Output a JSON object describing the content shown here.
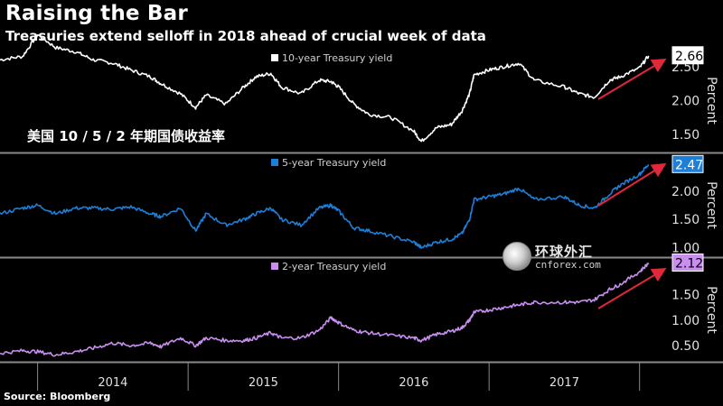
{
  "header": {
    "title": "Raising the Bar",
    "subtitle": "Treasuries extend selloff in 2018 ahead of crucial week of data"
  },
  "annotation": "美国 10 / 5 / 2 年期国债收益率",
  "source": "Source: Bloomberg",
  "watermark": {
    "cn": "环球外汇",
    "en": "cnforex.com"
  },
  "colors": {
    "background": "#000000",
    "ten_year": "#ffffff",
    "five_year": "#1e7fd8",
    "two_year": "#c98ef0",
    "arrow": "#e0283a",
    "separator": "#8a8a8a"
  },
  "chart_data": [
    {
      "type": "line",
      "panel": "top",
      "legend": "10-year Treasury yield",
      "ylabel": "Percent",
      "ylim": [
        1.25,
        2.75
      ],
      "yticks": [
        "1.50",
        "2.00",
        "2.50"
      ],
      "last_value": "2.66",
      "grid": false,
      "series": [
        {
          "name": "10-year Treasury yield",
          "x": [
            2013.75,
            2013.9,
            2014.0,
            2014.12,
            2014.25,
            2014.37,
            2014.5,
            2014.62,
            2014.75,
            2014.82,
            2014.95,
            2015.05,
            2015.12,
            2015.25,
            2015.37,
            2015.45,
            2015.55,
            2015.62,
            2015.75,
            2015.87,
            2015.95,
            2016.0,
            2016.1,
            2016.2,
            2016.35,
            2016.5,
            2016.55,
            2016.65,
            2016.75,
            2016.82,
            2016.87,
            2016.9,
            2017.0,
            2017.1,
            2017.2,
            2017.3,
            2017.5,
            2017.6,
            2017.7,
            2017.8,
            2017.87,
            2018.0,
            2018.06
          ],
          "y": [
            2.6,
            2.65,
            2.97,
            2.78,
            2.72,
            2.6,
            2.55,
            2.45,
            2.35,
            2.25,
            2.1,
            1.9,
            2.08,
            1.95,
            2.2,
            2.35,
            2.4,
            2.2,
            2.1,
            2.3,
            2.28,
            2.2,
            1.95,
            1.8,
            1.75,
            1.55,
            1.4,
            1.6,
            1.65,
            1.85,
            2.1,
            2.38,
            2.45,
            2.5,
            2.55,
            2.3,
            2.2,
            2.1,
            2.05,
            2.3,
            2.35,
            2.48,
            2.66
          ]
        }
      ]
    },
    {
      "type": "line",
      "panel": "middle",
      "legend": "5-year Treasury yield",
      "ylabel": "Percent",
      "ylim": [
        0.85,
        2.65
      ],
      "yticks": [
        "1.00",
        "1.50",
        "2.00"
      ],
      "last_value": "2.47",
      "grid": false,
      "series": [
        {
          "name": "5-year Treasury yield",
          "x": [
            2013.75,
            2013.9,
            2014.0,
            2014.12,
            2014.25,
            2014.37,
            2014.5,
            2014.62,
            2014.75,
            2014.82,
            2014.95,
            2015.05,
            2015.12,
            2015.25,
            2015.37,
            2015.45,
            2015.55,
            2015.62,
            2015.75,
            2015.87,
            2015.95,
            2016.0,
            2016.1,
            2016.2,
            2016.35,
            2016.5,
            2016.55,
            2016.65,
            2016.75,
            2016.82,
            2016.87,
            2016.9,
            2017.0,
            2017.1,
            2017.2,
            2017.3,
            2017.5,
            2017.6,
            2017.7,
            2017.8,
            2017.87,
            2018.0,
            2018.06
          ],
          "y": [
            1.6,
            1.7,
            1.75,
            1.6,
            1.7,
            1.7,
            1.68,
            1.72,
            1.6,
            1.55,
            1.7,
            1.3,
            1.6,
            1.4,
            1.5,
            1.6,
            1.7,
            1.5,
            1.4,
            1.7,
            1.75,
            1.65,
            1.35,
            1.3,
            1.2,
            1.1,
            1.0,
            1.1,
            1.15,
            1.25,
            1.5,
            1.85,
            1.9,
            1.95,
            2.05,
            1.85,
            1.9,
            1.75,
            1.7,
            1.95,
            2.1,
            2.3,
            2.47
          ]
        }
      ]
    },
    {
      "type": "line",
      "panel": "bottom",
      "legend": "2-year Treasury yield",
      "ylabel": "Percent",
      "ylim": [
        0.2,
        2.2
      ],
      "yticks": [
        "0.50",
        "1.00",
        "1.50"
      ],
      "last_value": "2.12",
      "grid": false,
      "series": [
        {
          "name": "2-year Treasury yield",
          "x": [
            2013.75,
            2013.9,
            2014.0,
            2014.12,
            2014.25,
            2014.37,
            2014.5,
            2014.62,
            2014.75,
            2014.82,
            2014.95,
            2015.05,
            2015.12,
            2015.25,
            2015.37,
            2015.45,
            2015.55,
            2015.62,
            2015.75,
            2015.87,
            2015.95,
            2016.0,
            2016.1,
            2016.2,
            2016.35,
            2016.5,
            2016.55,
            2016.65,
            2016.75,
            2016.82,
            2016.87,
            2016.9,
            2017.0,
            2017.1,
            2017.2,
            2017.3,
            2017.5,
            2017.6,
            2017.7,
            2017.8,
            2017.87,
            2018.0,
            2018.06
          ],
          "y": [
            0.35,
            0.4,
            0.38,
            0.32,
            0.38,
            0.45,
            0.55,
            0.5,
            0.55,
            0.48,
            0.65,
            0.5,
            0.65,
            0.6,
            0.6,
            0.65,
            0.75,
            0.65,
            0.65,
            0.8,
            1.05,
            0.95,
            0.8,
            0.75,
            0.7,
            0.65,
            0.6,
            0.72,
            0.78,
            0.85,
            1.0,
            1.15,
            1.2,
            1.25,
            1.3,
            1.35,
            1.35,
            1.35,
            1.4,
            1.6,
            1.7,
            1.95,
            2.12
          ]
        }
      ]
    }
  ],
  "x_axis": {
    "range": [
      2013.75,
      2018.17
    ],
    "labels": [
      "2014",
      "2015",
      "2016",
      "2017"
    ]
  }
}
